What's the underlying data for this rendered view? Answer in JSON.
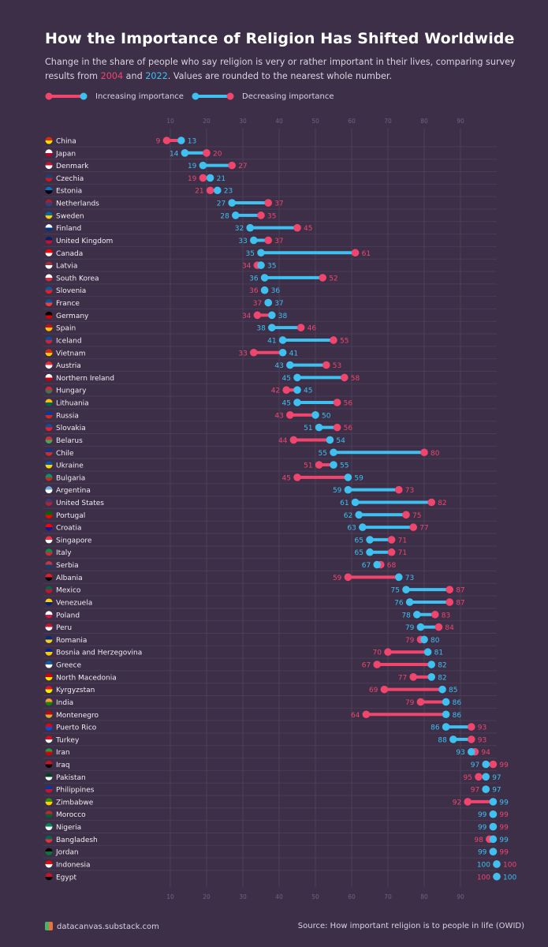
{
  "title": "How the Importance of Religion Has Shifted Worldwide",
  "subtitle_pre": "Change in the share of people who say religion is very or rather important in their lives, comparing survey results from ",
  "year_a": "2004",
  "subtitle_mid": " and ",
  "year_b": "2022",
  "subtitle_post": ". Values are rounded to the nearest whole number.",
  "legend": {
    "increasing": "Increasing importance",
    "decreasing": "Decreasing importance"
  },
  "footer": {
    "site": "datacanvas.substack.com",
    "source": "Source: How important religion is to people in life (OWID)"
  },
  "colors": {
    "y2004": "#f0466e",
    "y2022": "#3ec1f0",
    "background": "#3c2f47"
  },
  "chart_data": {
    "type": "dumbbell",
    "title": "How the Importance of Religion Has Shifted Worldwide",
    "series": [
      {
        "name": "2004",
        "color": "#f0466e"
      },
      {
        "name": "2022",
        "color": "#3ec1f0"
      }
    ],
    "xticks": [
      10,
      20,
      30,
      40,
      50,
      60,
      70,
      80,
      90
    ],
    "xlim": [
      0,
      100
    ],
    "grid": true,
    "legend_position": "top-left",
    "rows": [
      {
        "country": "China",
        "v2004": 9,
        "v2022": 13,
        "flag": [
          "#de2910",
          "#ffde00"
        ]
      },
      {
        "country": "Japan",
        "v2004": 20,
        "v2022": 14,
        "flag": [
          "#ffffff",
          "#bc002d"
        ]
      },
      {
        "country": "Denmark",
        "v2004": 27,
        "v2022": 19,
        "flag": [
          "#c8102e",
          "#ffffff"
        ]
      },
      {
        "country": "Czechia",
        "v2004": 19,
        "v2022": 21,
        "flag": [
          "#11457e",
          "#d7141a"
        ]
      },
      {
        "country": "Estonia",
        "v2004": 21,
        "v2022": 23,
        "flag": [
          "#0072ce",
          "#000000"
        ]
      },
      {
        "country": "Netherlands",
        "v2004": 37,
        "v2022": 27,
        "flag": [
          "#ae1c28",
          "#21468b"
        ]
      },
      {
        "country": "Sweden",
        "v2004": 35,
        "v2022": 28,
        "flag": [
          "#006aa7",
          "#fecc00"
        ]
      },
      {
        "country": "Finland",
        "v2004": 45,
        "v2022": 32,
        "flag": [
          "#ffffff",
          "#003580"
        ]
      },
      {
        "country": "United Kingdom",
        "v2004": 37,
        "v2022": 33,
        "flag": [
          "#012169",
          "#c8102e"
        ]
      },
      {
        "country": "Canada",
        "v2004": 61,
        "v2022": 35,
        "flag": [
          "#ff0000",
          "#ffffff"
        ]
      },
      {
        "country": "Latvia",
        "v2004": 34,
        "v2022": 35,
        "flag": [
          "#9e3039",
          "#ffffff"
        ]
      },
      {
        "country": "South Korea",
        "v2004": 52,
        "v2022": 36,
        "flag": [
          "#ffffff",
          "#cd2e3a"
        ]
      },
      {
        "country": "Slovenia",
        "v2004": 36,
        "v2022": 36,
        "flag": [
          "#005da4",
          "#ed1c24"
        ]
      },
      {
        "country": "France",
        "v2004": 37,
        "v2022": 37,
        "flag": [
          "#0055a4",
          "#ef4135"
        ]
      },
      {
        "country": "Germany",
        "v2004": 34,
        "v2022": 38,
        "flag": [
          "#000000",
          "#dd0000"
        ]
      },
      {
        "country": "Spain",
        "v2004": 46,
        "v2022": 38,
        "flag": [
          "#c60b1e",
          "#ffc400"
        ]
      },
      {
        "country": "Iceland",
        "v2004": 55,
        "v2022": 41,
        "flag": [
          "#02529c",
          "#dc1e35"
        ]
      },
      {
        "country": "Vietnam",
        "v2004": 33,
        "v2022": 41,
        "flag": [
          "#da251d",
          "#ffcd00"
        ]
      },
      {
        "country": "Austria",
        "v2004": 53,
        "v2022": 43,
        "flag": [
          "#ed2939",
          "#ffffff"
        ]
      },
      {
        "country": "Northern Ireland",
        "v2004": 58,
        "v2022": 45,
        "flag": [
          "#ffffff",
          "#cc0000"
        ]
      },
      {
        "country": "Hungary",
        "v2004": 42,
        "v2022": 45,
        "flag": [
          "#ce2939",
          "#477050"
        ]
      },
      {
        "country": "Lithuania",
        "v2004": 56,
        "v2022": 45,
        "flag": [
          "#fdb913",
          "#006a44"
        ]
      },
      {
        "country": "Russia",
        "v2004": 43,
        "v2022": 50,
        "flag": [
          "#0039a6",
          "#d52b1e"
        ]
      },
      {
        "country": "Slovakia",
        "v2004": 56,
        "v2022": 51,
        "flag": [
          "#0b4ea2",
          "#ee1c25"
        ]
      },
      {
        "country": "Belarus",
        "v2004": 44,
        "v2022": 54,
        "flag": [
          "#c8313e",
          "#4aa657"
        ]
      },
      {
        "country": "Chile",
        "v2004": 80,
        "v2022": 55,
        "flag": [
          "#0039a6",
          "#d52b1e"
        ]
      },
      {
        "country": "Ukraine",
        "v2004": 51,
        "v2022": 55,
        "flag": [
          "#0057b7",
          "#ffd700"
        ]
      },
      {
        "country": "Bulgaria",
        "v2004": 45,
        "v2022": 59,
        "flag": [
          "#00966e",
          "#d62612"
        ]
      },
      {
        "country": "Argentina",
        "v2004": 73,
        "v2022": 59,
        "flag": [
          "#74acdf",
          "#ffffff"
        ]
      },
      {
        "country": "United States",
        "v2004": 82,
        "v2022": 61,
        "flag": [
          "#3c3b6e",
          "#b22234"
        ]
      },
      {
        "country": "Portugal",
        "v2004": 75,
        "v2022": 62,
        "flag": [
          "#006600",
          "#ff0000"
        ]
      },
      {
        "country": "Croatia",
        "v2004": 77,
        "v2022": 63,
        "flag": [
          "#ff0000",
          "#171796"
        ]
      },
      {
        "country": "Singapore",
        "v2004": 71,
        "v2022": 65,
        "flag": [
          "#ef3340",
          "#ffffff"
        ]
      },
      {
        "country": "Italy",
        "v2004": 71,
        "v2022": 65,
        "flag": [
          "#009246",
          "#ce2b37"
        ]
      },
      {
        "country": "Serbia",
        "v2004": 68,
        "v2022": 67,
        "flag": [
          "#c6363c",
          "#0c4076"
        ]
      },
      {
        "country": "Albania",
        "v2004": 59,
        "v2022": 73,
        "flag": [
          "#e41e20",
          "#000000"
        ]
      },
      {
        "country": "Mexico",
        "v2004": 87,
        "v2022": 75,
        "flag": [
          "#006847",
          "#ce1126"
        ]
      },
      {
        "country": "Venezuela",
        "v2004": 87,
        "v2022": 76,
        "flag": [
          "#ffcc00",
          "#00247d"
        ]
      },
      {
        "country": "Poland",
        "v2004": 83,
        "v2022": 78,
        "flag": [
          "#ffffff",
          "#dc143c"
        ]
      },
      {
        "country": "Peru",
        "v2004": 84,
        "v2022": 79,
        "flag": [
          "#d91023",
          "#ffffff"
        ]
      },
      {
        "country": "Romania",
        "v2004": 79,
        "v2022": 80,
        "flag": [
          "#002b7f",
          "#fcd116"
        ]
      },
      {
        "country": "Bosnia and Herzegovina",
        "v2004": 70,
        "v2022": 81,
        "flag": [
          "#002395",
          "#fecb00"
        ]
      },
      {
        "country": "Greece",
        "v2004": 67,
        "v2022": 82,
        "flag": [
          "#0d5eaf",
          "#ffffff"
        ]
      },
      {
        "country": "North Macedonia",
        "v2004": 77,
        "v2022": 82,
        "flag": [
          "#d20000",
          "#ffe600"
        ]
      },
      {
        "country": "Kyrgyzstan",
        "v2004": 69,
        "v2022": 85,
        "flag": [
          "#e8112d",
          "#ffef00"
        ]
      },
      {
        "country": "India",
        "v2004": 79,
        "v2022": 86,
        "flag": [
          "#ff9933",
          "#138808"
        ]
      },
      {
        "country": "Montenegro",
        "v2004": 64,
        "v2022": 86,
        "flag": [
          "#c40308",
          "#d3ae3b"
        ]
      },
      {
        "country": "Puerto Rico",
        "v2004": 93,
        "v2022": 86,
        "flag": [
          "#ed0000",
          "#0050f0"
        ]
      },
      {
        "country": "Turkey",
        "v2004": 93,
        "v2022": 88,
        "flag": [
          "#e30a17",
          "#ffffff"
        ]
      },
      {
        "country": "Iran",
        "v2004": 94,
        "v2022": 93,
        "flag": [
          "#239f40",
          "#da0000"
        ]
      },
      {
        "country": "Iraq",
        "v2004": 99,
        "v2022": 97,
        "flag": [
          "#ce1126",
          "#000000"
        ]
      },
      {
        "country": "Pakistan",
        "v2004": 95,
        "v2022": 97,
        "flag": [
          "#01411c",
          "#ffffff"
        ]
      },
      {
        "country": "Philippines",
        "v2004": 97,
        "v2022": 97,
        "flag": [
          "#0038a8",
          "#ce1126"
        ]
      },
      {
        "country": "Zimbabwe",
        "v2004": 92,
        "v2022": 99,
        "flag": [
          "#319208",
          "#ffd200"
        ]
      },
      {
        "country": "Morocco",
        "v2004": 99,
        "v2022": 99,
        "flag": [
          "#c1272d",
          "#006233"
        ],
        "left": "2022"
      },
      {
        "country": "Nigeria",
        "v2004": 99,
        "v2022": 99,
        "flag": [
          "#008751",
          "#ffffff"
        ],
        "left": "2022"
      },
      {
        "country": "Bangladesh",
        "v2004": 98,
        "v2022": 99,
        "flag": [
          "#006a4e",
          "#f42a41"
        ]
      },
      {
        "country": "Jordan",
        "v2004": 99,
        "v2022": 99,
        "flag": [
          "#000000",
          "#007a3d"
        ],
        "left": "2022"
      },
      {
        "country": "Indonesia",
        "v2004": 100,
        "v2022": 100,
        "flag": [
          "#ff0000",
          "#ffffff"
        ],
        "left": "2022"
      },
      {
        "country": "Egypt",
        "v2004": 100,
        "v2022": 100,
        "flag": [
          "#ce1126",
          "#000000"
        ]
      }
    ]
  }
}
